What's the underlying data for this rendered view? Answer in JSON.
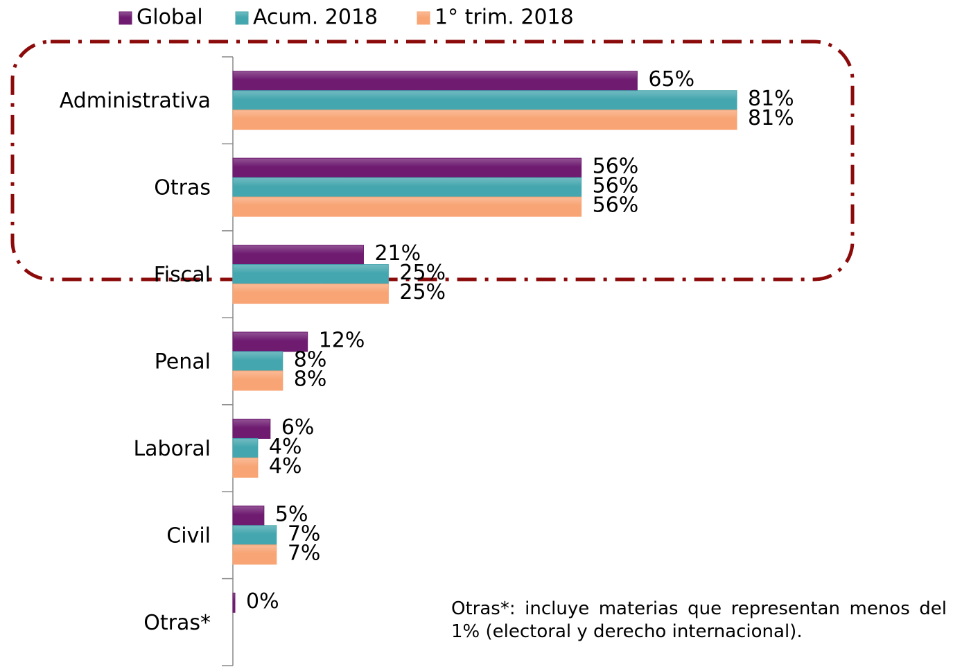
{
  "chart_data": {
    "type": "hbar",
    "categories": [
      "Administrativa",
      "Otras",
      "Fiscal",
      "Penal",
      "Laboral",
      "Civil",
      "Otras*"
    ],
    "series": [
      {
        "name": "Global",
        "color": "#6e1b70",
        "values": [
          65,
          56,
          21,
          12,
          6,
          5,
          0
        ],
        "value_labels": [
          "65%",
          "56%",
          "21%",
          "12%",
          "6%",
          "5%",
          "0%"
        ]
      },
      {
        "name": "Acum. 2018",
        "color": "#44a6ae",
        "values": [
          81,
          56,
          25,
          8,
          4,
          7,
          null
        ],
        "value_labels": [
          "81%",
          "56%",
          "25%",
          "8%",
          "4%",
          "7%",
          null
        ]
      },
      {
        "name": "1° trim. 2018",
        "color": "#f8a474",
        "values": [
          81,
          56,
          25,
          8,
          4,
          7,
          null
        ],
        "value_labels": [
          "81%",
          "56%",
          "25%",
          "8%",
          "4%",
          "7%",
          null
        ]
      }
    ],
    "legend": "top",
    "note": "Otras*: incluye materias que representan menos del 1% (electoral y derecho internacional)."
  }
}
